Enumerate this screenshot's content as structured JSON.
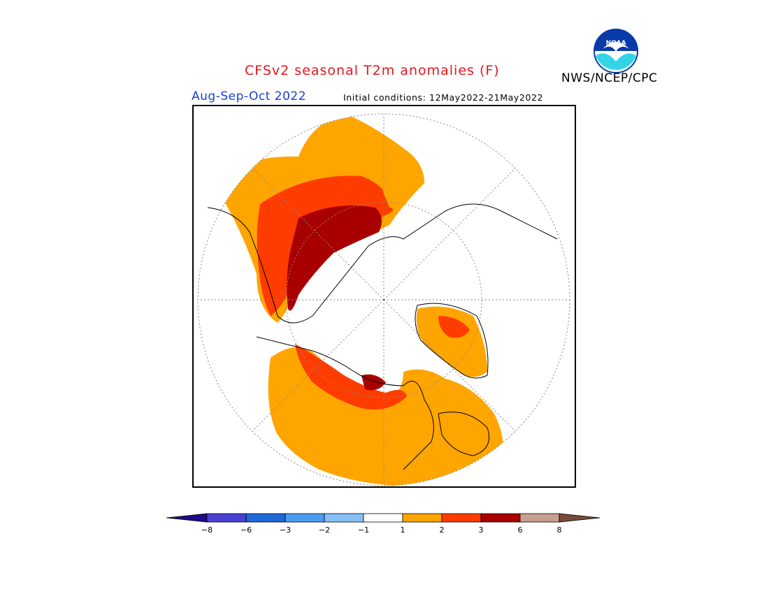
{
  "title": "CFSv2 seasonal T2m anomalies (F)",
  "organization": "NWS/NCEP/CPC",
  "logo_text": "NOAA",
  "season": "Aug-Sep-Oct 2022",
  "initial_conditions": "Initial conditions: 12May2022-21May2022",
  "colorbar": {
    "labels": [
      "-8",
      "-6",
      "-3",
      "-2",
      "-1",
      "1",
      "2",
      "3",
      "6",
      "8"
    ],
    "colors": [
      "#1f0a8a",
      "#4a3fd4",
      "#1e68d8",
      "#4a9cf0",
      "#86c0f4",
      "#ffffff",
      "#ffa500",
      "#ff3c00",
      "#a80000",
      "#c8a090",
      "#7a4a3a"
    ]
  },
  "map": {
    "projection": "north polar stereographic",
    "legend_colors": {
      "light_warm": "#ffa500",
      "warm": "#ff3c00",
      "hot": "#a80000"
    }
  }
}
